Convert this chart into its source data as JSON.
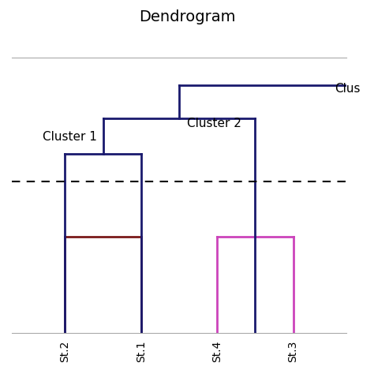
{
  "title": "Dendrogram",
  "title_fontsize": 14,
  "bg_color": "#ffffff",
  "stations": [
    "St.2",
    "St.1",
    "St.4",
    "St.3"
  ],
  "cluster_label_1": "Cluster 1",
  "cluster_label_2": "Cluster 2",
  "cluster_label_3": "Clus",
  "dark_blue": "#1a1a6e",
  "dark_red": "#7a1a1a",
  "pink": "#cc44bb",
  "lw_main": 2.0
}
